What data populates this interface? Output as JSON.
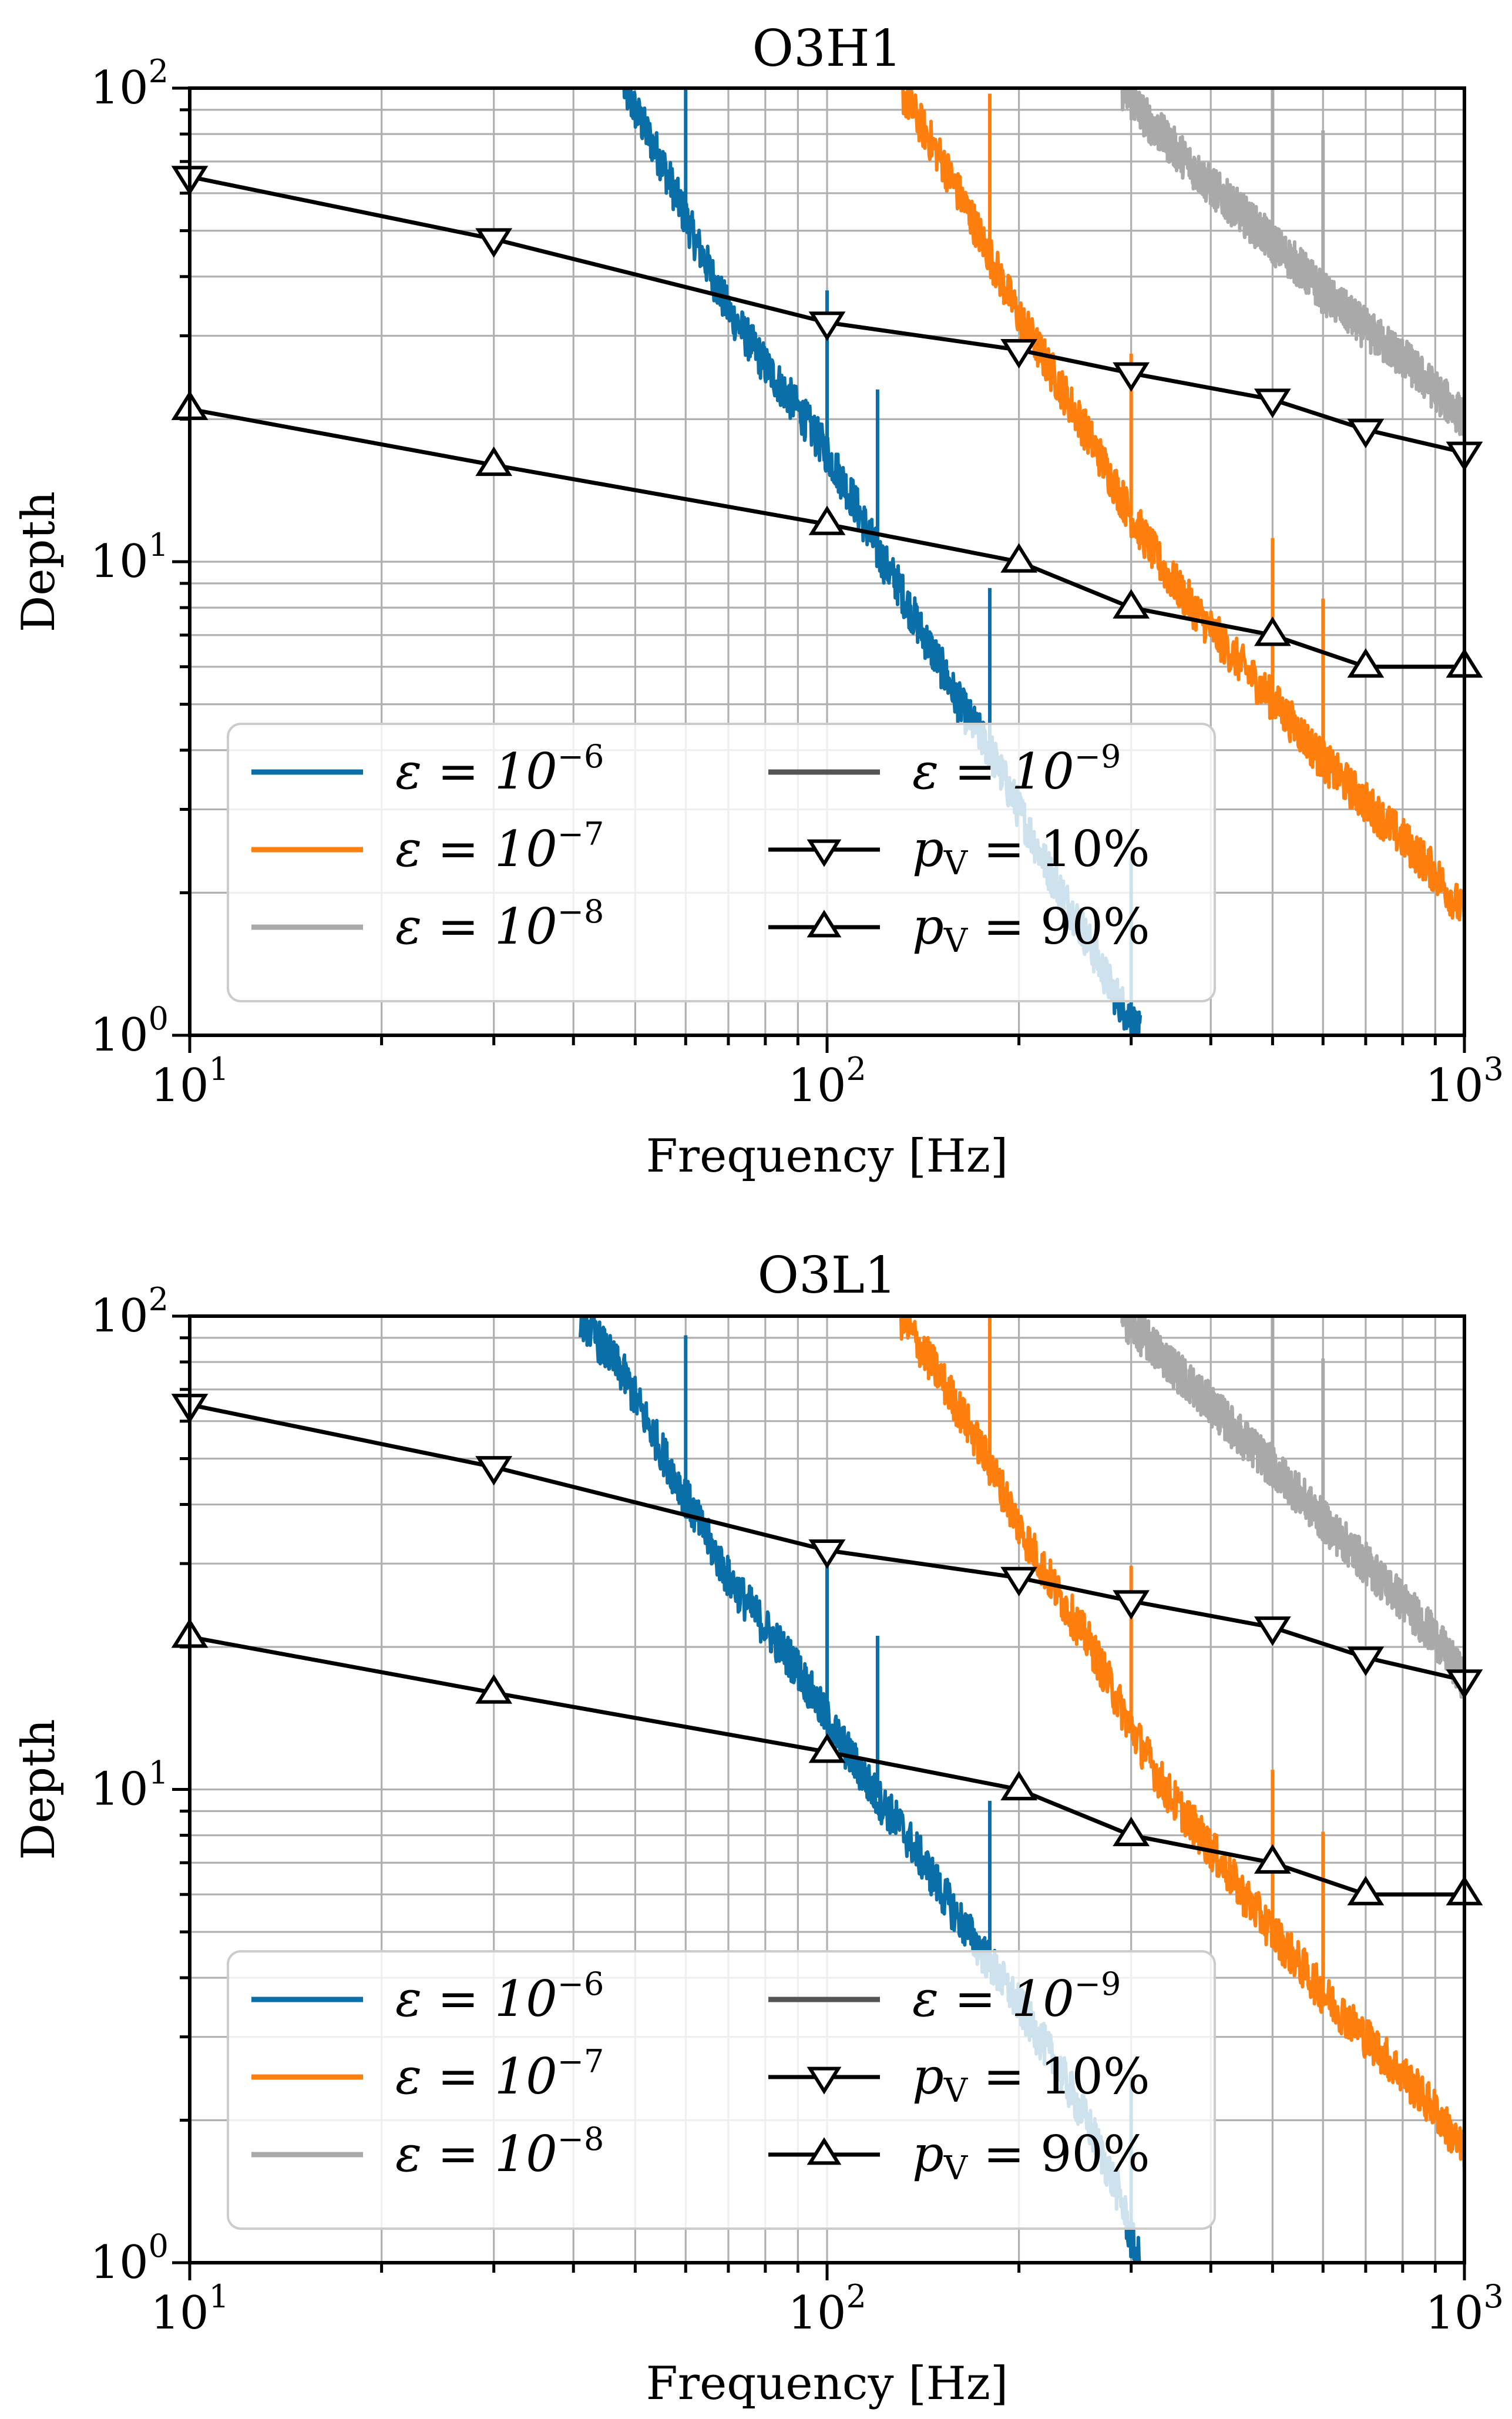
{
  "chart_data": [
    {
      "type": "line",
      "title": "O3H1",
      "xlabel": "Frequency [Hz]",
      "ylabel": "Depth",
      "xscale": "log",
      "yscale": "log",
      "xlim": [
        10,
        1000
      ],
      "ylim": [
        1,
        100
      ],
      "grid": true,
      "legend_position": "lower-left",
      "x_ticks": [
        {
          "base": "10",
          "exp": "1"
        },
        {
          "base": "10",
          "exp": "2"
        },
        {
          "base": "10",
          "exp": "3"
        }
      ],
      "y_ticks": [
        {
          "base": "10",
          "exp": "0"
        },
        {
          "base": "10",
          "exp": "1"
        },
        {
          "base": "10",
          "exp": "2"
        }
      ],
      "series": [
        {
          "name": "ε = 10^-6",
          "label": "ε = 10",
          "label_exp": "−6",
          "color": "#0a6ea8",
          "style": "noisy",
          "x": [
            48,
            55,
            62,
            70,
            80,
            90,
            100,
            110,
            120,
            130,
            140,
            150,
            160,
            180,
            200,
            220,
            250,
            280,
            300,
            310
          ],
          "y": [
            100,
            70,
            48,
            34,
            26,
            21,
            17,
            13.5,
            10.5,
            8.8,
            7.2,
            6.1,
            5.1,
            4.0,
            3.0,
            2.3,
            1.7,
            1.25,
            1.08,
            1.0
          ]
        },
        {
          "name": "ε = 10^-7",
          "label": "ε = 10",
          "label_exp": "−7",
          "color": "#ff7f0e",
          "style": "noisy",
          "x": [
            130,
            150,
            170,
            190,
            200,
            230,
            260,
            300,
            340,
            400,
            450,
            500,
            550,
            600,
            700,
            800,
            900,
            1000
          ],
          "y": [
            100,
            72,
            52,
            38,
            33,
            24,
            18,
            12.5,
            9.5,
            7.2,
            6.0,
            5.1,
            4.4,
            3.8,
            3.1,
            2.6,
            2.2,
            1.8
          ]
        },
        {
          "name": "ε = 10^-8",
          "label": "ε = 10",
          "label_exp": "−8",
          "color": "#a9a9a9",
          "style": "noisy",
          "x": [
            290,
            320,
            360,
            400,
            450,
            500,
            550,
            600,
            700,
            800,
            900,
            1000
          ],
          "y": [
            100,
            85,
            72,
            62,
            54,
            47,
            42,
            37,
            31,
            27,
            23,
            20
          ]
        },
        {
          "name": "ε = 10^-9",
          "label": "ε = 10",
          "label_exp": "−9",
          "color": "#555555",
          "style": "plain",
          "x": [],
          "y": []
        },
        {
          "name": "p_V = 10%",
          "label": "p",
          "label_sub": "V",
          "label_tail": " = 10%",
          "color": "#000000",
          "style": "markers",
          "marker": "triangle-down",
          "x": [
            10,
            30,
            100,
            200,
            300,
            500,
            700,
            1000
          ],
          "y": [
            65,
            48,
            32,
            28,
            25,
            22,
            19,
            17
          ]
        },
        {
          "name": "p_V = 90%",
          "label": "p",
          "label_sub": "V",
          "label_tail": " = 90%",
          "color": "#000000",
          "style": "markers",
          "marker": "triangle-up",
          "x": [
            10,
            30,
            100,
            200,
            300,
            500,
            700,
            1000
          ],
          "y": [
            21,
            16,
            12,
            10,
            8,
            7,
            6,
            6
          ]
        }
      ]
    },
    {
      "type": "line",
      "title": "O3L1",
      "xlabel": "Frequency [Hz]",
      "ylabel": "Depth",
      "xscale": "log",
      "yscale": "log",
      "xlim": [
        10,
        1000
      ],
      "ylim": [
        1,
        100
      ],
      "grid": true,
      "legend_position": "lower-left",
      "x_ticks": [
        {
          "base": "10",
          "exp": "1"
        },
        {
          "base": "10",
          "exp": "2"
        },
        {
          "base": "10",
          "exp": "3"
        }
      ],
      "y_ticks": [
        {
          "base": "10",
          "exp": "0"
        },
        {
          "base": "10",
          "exp": "1"
        },
        {
          "base": "10",
          "exp": "2"
        }
      ],
      "series": [
        {
          "name": "ε = 10^-6",
          "label": "ε = 10",
          "label_exp": "−6",
          "color": "#0a6ea8",
          "style": "noisy",
          "x": [
            41,
            48,
            55,
            62,
            70,
            80,
            90,
            100,
            110,
            120,
            130,
            140,
            150,
            160,
            180,
            200,
            230,
            260,
            290,
            300,
            310
          ],
          "y": [
            100,
            75,
            52,
            38,
            28,
            22,
            18,
            14,
            11.5,
            9.6,
            8.4,
            7.2,
            6.2,
            5.4,
            4.3,
            3.5,
            2.6,
            1.9,
            1.35,
            1.12,
            1.0
          ]
        },
        {
          "name": "ε = 10^-7",
          "label": "ε = 10",
          "label_exp": "−7",
          "color": "#ff7f0e",
          "style": "noisy",
          "x": [
            130,
            150,
            170,
            190,
            200,
            230,
            260,
            300,
            340,
            400,
            450,
            500,
            550,
            600,
            700,
            800,
            900,
            1000
          ],
          "y": [
            100,
            75,
            56,
            42,
            36,
            26,
            20,
            13.5,
            10,
            7.5,
            6.0,
            5.0,
            4.3,
            3.7,
            3.0,
            2.5,
            2.1,
            1.7
          ]
        },
        {
          "name": "ε = 10^-8",
          "label": "ε = 10",
          "label_exp": "−8",
          "color": "#a9a9a9",
          "style": "noisy",
          "x": [
            290,
            320,
            360,
            400,
            450,
            500,
            550,
            600,
            700,
            800,
            900,
            1000
          ],
          "y": [
            100,
            88,
            75,
            65,
            55,
            48,
            42,
            37,
            30,
            25,
            21,
            17
          ]
        },
        {
          "name": "ε = 10^-9",
          "label": "ε = 10",
          "label_exp": "−9",
          "color": "#555555",
          "style": "plain",
          "x": [],
          "y": []
        },
        {
          "name": "p_V = 10%",
          "label": "p",
          "label_sub": "V",
          "label_tail": " = 10%",
          "color": "#000000",
          "style": "markers",
          "marker": "triangle-down",
          "x": [
            10,
            30,
            100,
            200,
            300,
            500,
            700,
            1000
          ],
          "y": [
            65,
            48,
            32,
            28,
            25,
            22,
            19,
            17
          ]
        },
        {
          "name": "p_V = 90%",
          "label": "p",
          "label_sub": "V",
          "label_tail": " = 90%",
          "color": "#000000",
          "style": "markers",
          "marker": "triangle-up",
          "x": [
            10,
            30,
            100,
            200,
            300,
            500,
            700,
            1000
          ],
          "y": [
            21,
            16,
            12,
            10,
            8,
            7,
            6,
            6
          ]
        }
      ]
    }
  ]
}
